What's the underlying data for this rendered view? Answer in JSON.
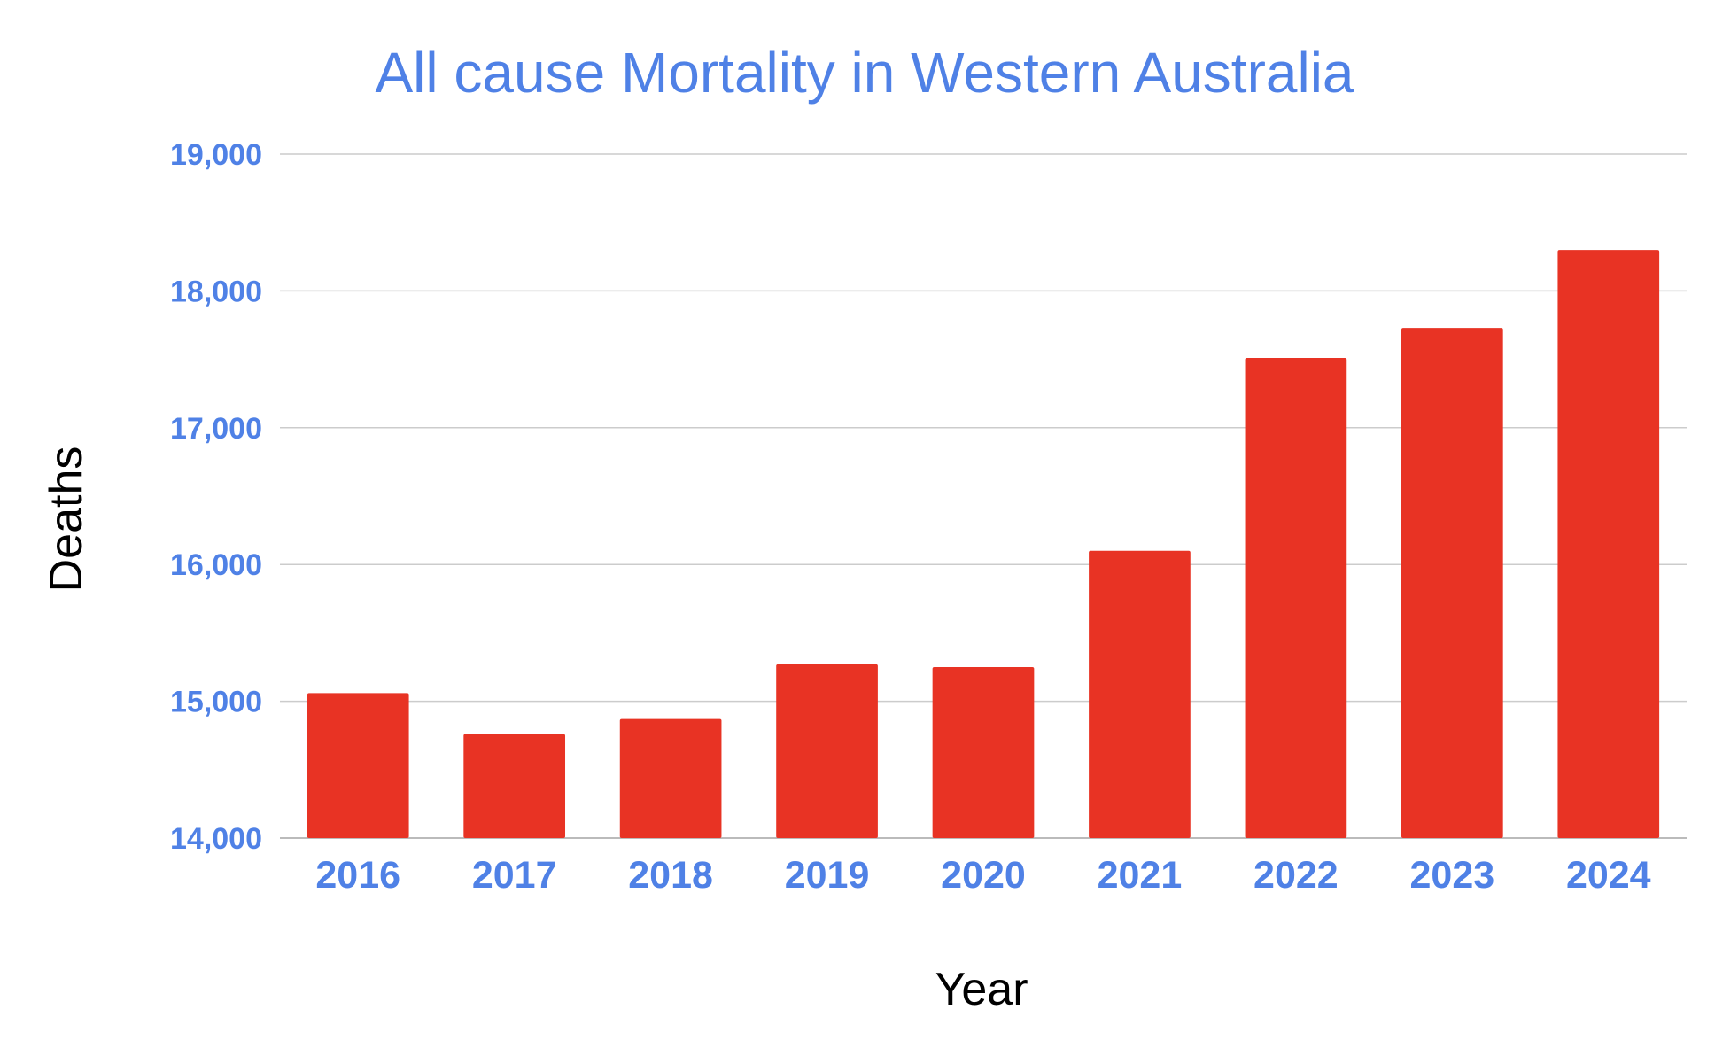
{
  "chart_data": {
    "type": "bar",
    "title": "All cause Mortality in Western Australia",
    "xlabel": "Year",
    "ylabel": "Deaths",
    "categories": [
      "2016",
      "2017",
      "2018",
      "2019",
      "2020",
      "2021",
      "2022",
      "2023",
      "2024"
    ],
    "values": [
      15060,
      14760,
      14870,
      15270,
      15250,
      16100,
      17510,
      17730,
      18300
    ],
    "ylim": [
      14000,
      19000
    ],
    "yticks": [
      14000,
      15000,
      16000,
      17000,
      18000,
      19000
    ],
    "ytick_labels": [
      "14,000",
      "15,000",
      "16,000",
      "17,000",
      "18,000",
      "19,000"
    ],
    "grid": true,
    "legend": "none",
    "colors": {
      "bar": "#e83324",
      "title": "#4f81e6",
      "ticks": "#4f81e6",
      "axis_label": "#000000",
      "grid": "#cccccc",
      "baseline": "#bbbbbb"
    }
  }
}
